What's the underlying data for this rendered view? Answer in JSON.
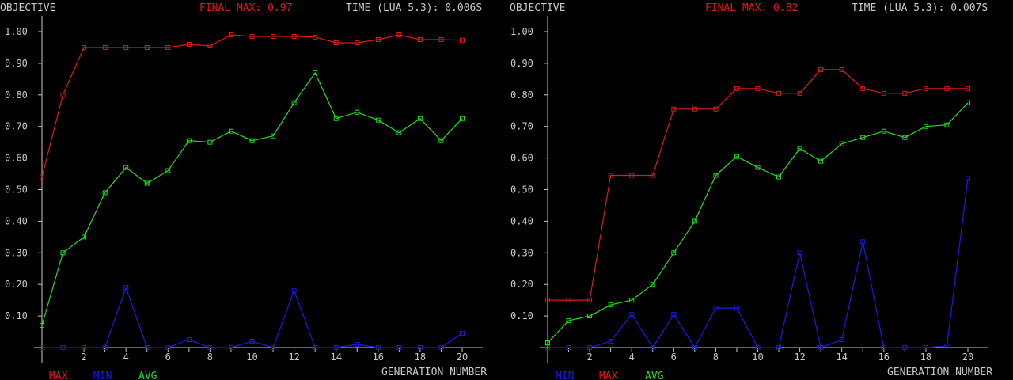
{
  "colors": {
    "background": "#000000",
    "text": "#c8c8c8",
    "max": "#e01818",
    "min": "#1a1ae6",
    "avg": "#22dd22"
  },
  "chart_data": [
    {
      "type": "line",
      "title_left": "OBJECTIVE",
      "final_max": "FINAL MAX: 0.97",
      "time": "TIME (LUA 5.3): 0.006S",
      "xlabel": "GENERATION NUMBER",
      "ylim": [
        0,
        1.0
      ],
      "xlim": [
        0,
        20
      ],
      "ytick_labels": [
        "0.10",
        "0.20",
        "0.30",
        "0.40",
        "0.50",
        "0.60",
        "0.70",
        "0.80",
        "0.90",
        "1.00"
      ],
      "xtick_labels": [
        "2",
        "4",
        "6",
        "8",
        "10",
        "12",
        "14",
        "16",
        "18",
        "20"
      ],
      "legend": [
        "MAX",
        "MIN",
        "AVG"
      ],
      "x": [
        0,
        1,
        2,
        3,
        4,
        5,
        6,
        7,
        8,
        9,
        10,
        11,
        12,
        13,
        14,
        15,
        16,
        17,
        18,
        19,
        20
      ],
      "series": [
        {
          "name": "MAX",
          "color": "#e01818",
          "values": [
            0.54,
            0.8,
            0.95,
            0.95,
            0.95,
            0.95,
            0.95,
            0.96,
            0.955,
            0.99,
            0.985,
            0.985,
            0.985,
            0.983,
            0.965,
            0.965,
            0.975,
            0.99,
            0.975,
            0.975,
            0.973
          ]
        },
        {
          "name": "MIN",
          "color": "#1a1ae6",
          "values": [
            0,
            0,
            0,
            0,
            0.19,
            0,
            0,
            0.025,
            0,
            0,
            0.02,
            0,
            0.18,
            0,
            0,
            0.01,
            0,
            0,
            0,
            0,
            0.045
          ]
        },
        {
          "name": "AVG",
          "color": "#22dd22",
          "values": [
            0.07,
            0.3,
            0.35,
            0.49,
            0.57,
            0.52,
            0.56,
            0.655,
            0.65,
            0.685,
            0.655,
            0.67,
            0.775,
            0.87,
            0.725,
            0.745,
            0.72,
            0.68,
            0.725,
            0.655,
            0.725
          ]
        }
      ]
    },
    {
      "type": "line",
      "title_left": "OBJECTIVE",
      "final_max": "FINAL MAX: 0.82",
      "time": "TIME (LUA 5.3): 0.007S",
      "xlabel": "GENERATION NUMBER",
      "ylim": [
        0,
        1.0
      ],
      "xlim": [
        0,
        20
      ],
      "ytick_labels": [
        "0.10",
        "0.20",
        "0.30",
        "0.40",
        "0.50",
        "0.60",
        "0.70",
        "0.80",
        "0.90",
        "1.00"
      ],
      "xtick_labels": [
        "2",
        "4",
        "6",
        "8",
        "10",
        "12",
        "14",
        "16",
        "18",
        "20"
      ],
      "legend": [
        "MIN",
        "MAX",
        "AVG"
      ],
      "x": [
        0,
        1,
        2,
        3,
        4,
        5,
        6,
        7,
        8,
        9,
        10,
        11,
        12,
        13,
        14,
        15,
        16,
        17,
        18,
        19,
        20
      ],
      "series": [
        {
          "name": "MAX",
          "color": "#e01818",
          "values": [
            0.15,
            0.15,
            0.15,
            0.545,
            0.545,
            0.545,
            0.755,
            0.755,
            0.755,
            0.82,
            0.82,
            0.805,
            0.805,
            0.88,
            0.88,
            0.82,
            0.805,
            0.805,
            0.82,
            0.82,
            0.82
          ]
        },
        {
          "name": "MIN",
          "color": "#1a1ae6",
          "values": [
            0,
            0,
            0,
            0.02,
            0.105,
            0,
            0.105,
            0,
            0.125,
            0.125,
            0,
            0,
            0.3,
            0,
            0.025,
            0.335,
            0,
            0,
            0,
            0.005,
            0.535
          ]
        },
        {
          "name": "AVG",
          "color": "#22dd22",
          "values": [
            0.015,
            0.085,
            0.1,
            0.135,
            0.15,
            0.2,
            0.3,
            0.4,
            0.545,
            0.605,
            0.57,
            0.54,
            0.63,
            0.59,
            0.645,
            0.665,
            0.685,
            0.665,
            0.7,
            0.705,
            0.775
          ]
        }
      ]
    }
  ]
}
